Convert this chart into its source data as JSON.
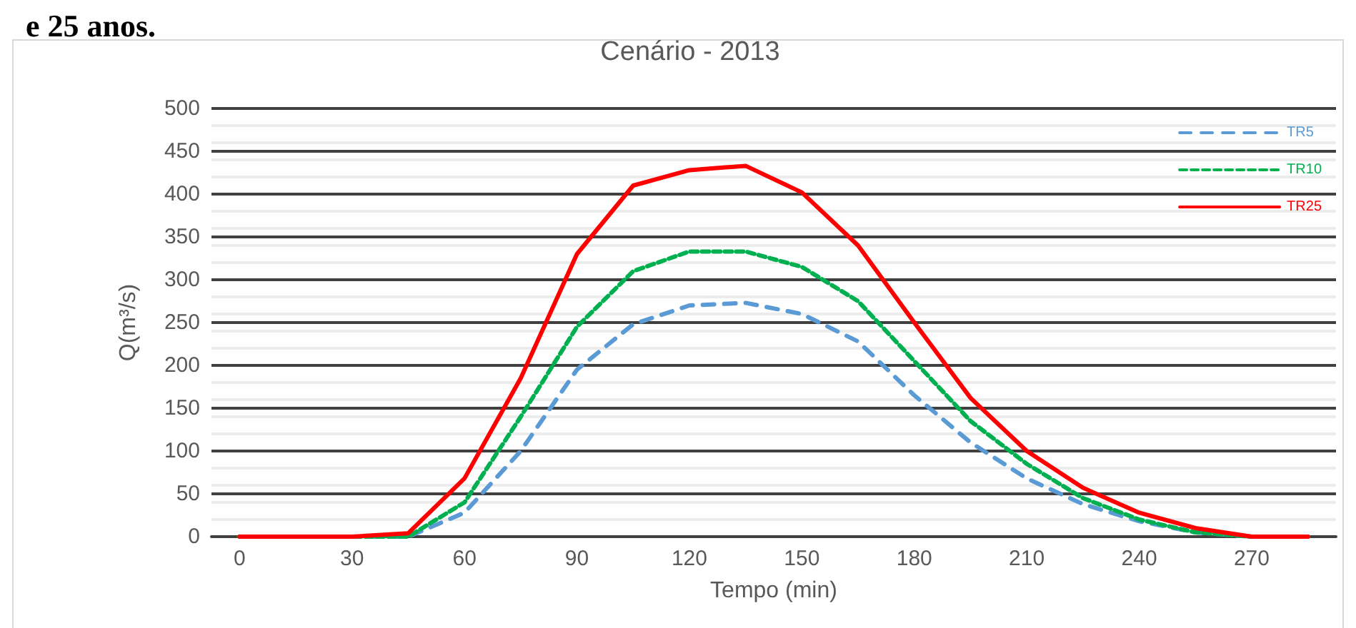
{
  "chart_data": {
    "type": "line",
    "title": "Cenário - 2013",
    "xlabel": "Tempo (min)",
    "ylabel": "Q(m³/s)",
    "annotations": [
      "e 25 anos."
    ],
    "categories": [
      "0",
      null,
      "30",
      null,
      "60",
      null,
      "90",
      null,
      "120",
      null,
      "150",
      null,
      "180",
      null,
      "210",
      null,
      "240",
      null,
      "270",
      null
    ],
    "series": [
      {
        "name": "TR5",
        "color": "#5b9bd5",
        "line_style": "dashed",
        "values": [
          0,
          0,
          0,
          0,
          28,
          100,
          195,
          248,
          270,
          273,
          260,
          228,
          165,
          110,
          68,
          38,
          18,
          5,
          0,
          0
        ]
      },
      {
        "name": "TR10",
        "color": "#00b050",
        "line_style": "dotted",
        "values": [
          0,
          0,
          0,
          0,
          40,
          140,
          245,
          310,
          333,
          333,
          315,
          275,
          205,
          135,
          85,
          45,
          20,
          5,
          0,
          0
        ]
      },
      {
        "name": "TR25",
        "color": "#ff0000",
        "line_style": "solid",
        "values": [
          0,
          0,
          0,
          4,
          68,
          185,
          330,
          410,
          428,
          433,
          402,
          340,
          250,
          162,
          100,
          57,
          28,
          10,
          0,
          0
        ]
      }
    ],
    "ylim": [
      0,
      500
    ],
    "yticks": [
      0,
      50,
      100,
      150,
      200,
      250,
      300,
      350,
      400,
      450,
      500
    ],
    "grid": "y",
    "legend": "top right",
    "marker": "none"
  }
}
